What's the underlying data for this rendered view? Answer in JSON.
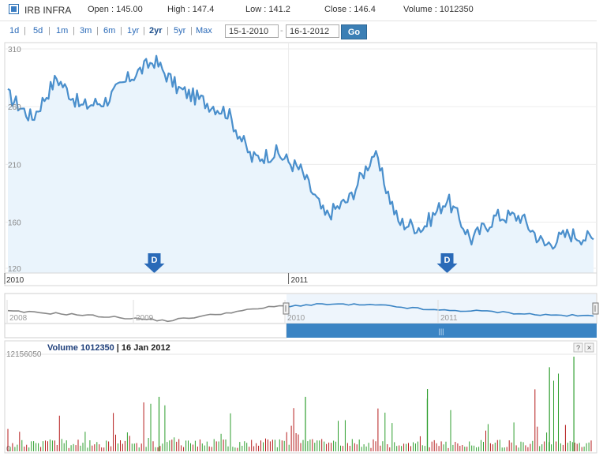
{
  "header": {
    "symbol": "IRB INFRA",
    "open_label": "Open : 145.00",
    "high_label": "High : 147.4",
    "low_label": "Low : 141.2",
    "close_label": "Close : 146.4",
    "volume_label": "Volume : 1012350"
  },
  "toolbar": {
    "ranges": [
      "1d",
      "5d",
      "1m",
      "3m",
      "6m",
      "1yr",
      "2yr",
      "5yr",
      "Max"
    ],
    "active_range": "2yr",
    "from_date": "15-1-2010",
    "date_separator": "-",
    "to_date": "16-1-2012",
    "go_label": "Go"
  },
  "colors": {
    "price_line": "#4a8fcc",
    "price_fill": "#eaf4fc",
    "navigator_line": "#888888",
    "navigator_line_selected": "#3a84c4",
    "navigator_band": "#3a84c4",
    "flag": "#2a6ab8",
    "volume_up": "#2e9e2e",
    "volume_down": "#b51c1c"
  },
  "chart_data": [
    {
      "type": "line",
      "x_labels": [
        "2010",
        "2011"
      ],
      "ylim": [
        120,
        310
      ],
      "y_ticks": [
        310,
        260,
        210,
        160,
        120
      ],
      "grid": true,
      "flags": [
        {
          "label": "D",
          "date": "Jul 2010"
        },
        {
          "label": "D",
          "date": "Jul 2011"
        }
      ],
      "x": [
        "Jan 2010",
        "Feb 2010",
        "Mar 2010",
        "Apr 2010",
        "May 2010",
        "Jun 2010",
        "Jul 2010",
        "Aug 2010",
        "Sep 2010",
        "Oct 2010",
        "Nov 2010",
        "Dec 2010",
        "Jan 2011",
        "Feb 2011",
        "Mar 2011",
        "Apr 2011",
        "May 2011",
        "Jun 2011",
        "Jul 2011",
        "Aug 2011",
        "Sep 2011",
        "Oct 2011",
        "Nov 2011",
        "Dec 2011",
        "Jan 2012"
      ],
      "values": [
        270,
        250,
        285,
        260,
        265,
        285,
        300,
        275,
        265,
        255,
        215,
        220,
        205,
        165,
        180,
        220,
        160,
        155,
        180,
        145,
        165,
        165,
        140,
        150,
        145
      ]
    },
    {
      "type": "area",
      "name": "navigator",
      "x_labels": [
        "2008",
        "2009",
        "2010",
        "2011"
      ],
      "values": [
        0.45,
        0.35,
        0.2,
        0.05,
        0.35,
        0.65,
        0.75,
        0.7,
        0.5,
        0.45,
        0.3,
        0.25
      ]
    },
    {
      "type": "bar",
      "title": "Volume 1012350",
      "date_label": "| 16 Jan 2012",
      "ylim": [
        0,
        12156050
      ],
      "y_ticks": [
        12156050,
        0
      ],
      "highlights": [
        {
          "month": "Jul 2010",
          "value": 7000000
        },
        {
          "month": "Jan 2011",
          "value": 7000000
        },
        {
          "month": "Jun 2011",
          "value": 8000000
        },
        {
          "month": "Nov 2011",
          "value": 10800000
        },
        {
          "month": "Dec 2011",
          "value": 12156050
        }
      ],
      "values_note_rows": [
        {
          "month": "Jan 2010",
          "value": 2000000
        },
        {
          "month": "Apr 2010",
          "value": 3000000
        },
        {
          "month": "Oct 2010",
          "value": 2500000
        },
        {
          "month": "Mar 2011",
          "value": 3000000
        },
        {
          "month": "Sep 2011",
          "value": 3500000
        }
      ]
    }
  ],
  "volume_buttons": {
    "help": "?",
    "close": "×"
  },
  "scroll_handle": "|||"
}
